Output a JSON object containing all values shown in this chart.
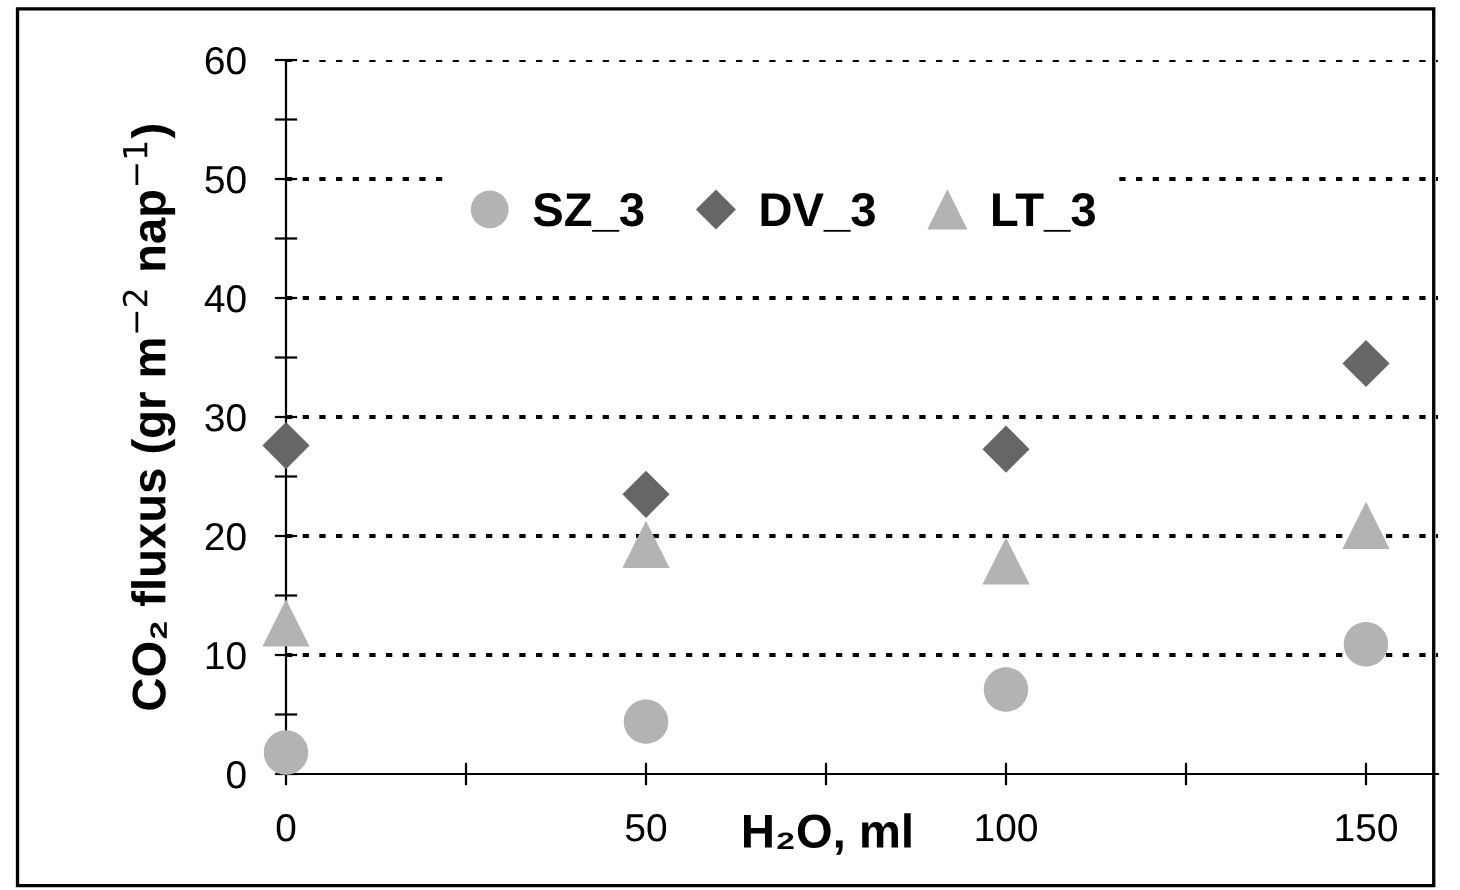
{
  "chart_data": {
    "type": "scatter",
    "xlabel": "H₂O, ml",
    "ylabel": "CO₂ fluxus (gr m$^{−2}$ nap$^{−1}$)",
    "x": [
      0,
      50,
      100,
      150
    ],
    "series": [
      {
        "name": "SZ_3",
        "color": "#b3b3b3",
        "marker": "circle",
        "values": [
          1.8,
          4.4,
          7.1,
          10.9
        ]
      },
      {
        "name": "DV_3",
        "color": "#666666",
        "marker": "diamond",
        "values": [
          27.6,
          23.5,
          27.3,
          34.5
        ]
      },
      {
        "name": "LT_3",
        "color": "#b3b3b3",
        "marker": "triangle",
        "values": [
          12.7,
          19.3,
          17.9,
          20.9
        ]
      }
    ],
    "xlim": [
      0,
      160
    ],
    "xticks": [
      0,
      {
        "value": 25,
        "label": null
      },
      50,
      {
        "value": 75,
        "label": null
      },
      100,
      {
        "value": 125,
        "label": null
      },
      150
    ],
    "ylim": [
      0,
      60
    ],
    "yticks": [
      0,
      {
        "value": 5,
        "label": null
      },
      10,
      {
        "value": 15,
        "label": null
      },
      20,
      {
        "value": 25,
        "label": null
      },
      30,
      {
        "value": 35,
        "label": null
      },
      40,
      {
        "value": 45,
        "label": null
      },
      50,
      {
        "value": 55,
        "label": null
      },
      60
    ],
    "grid": "y",
    "legend": "top"
  }
}
